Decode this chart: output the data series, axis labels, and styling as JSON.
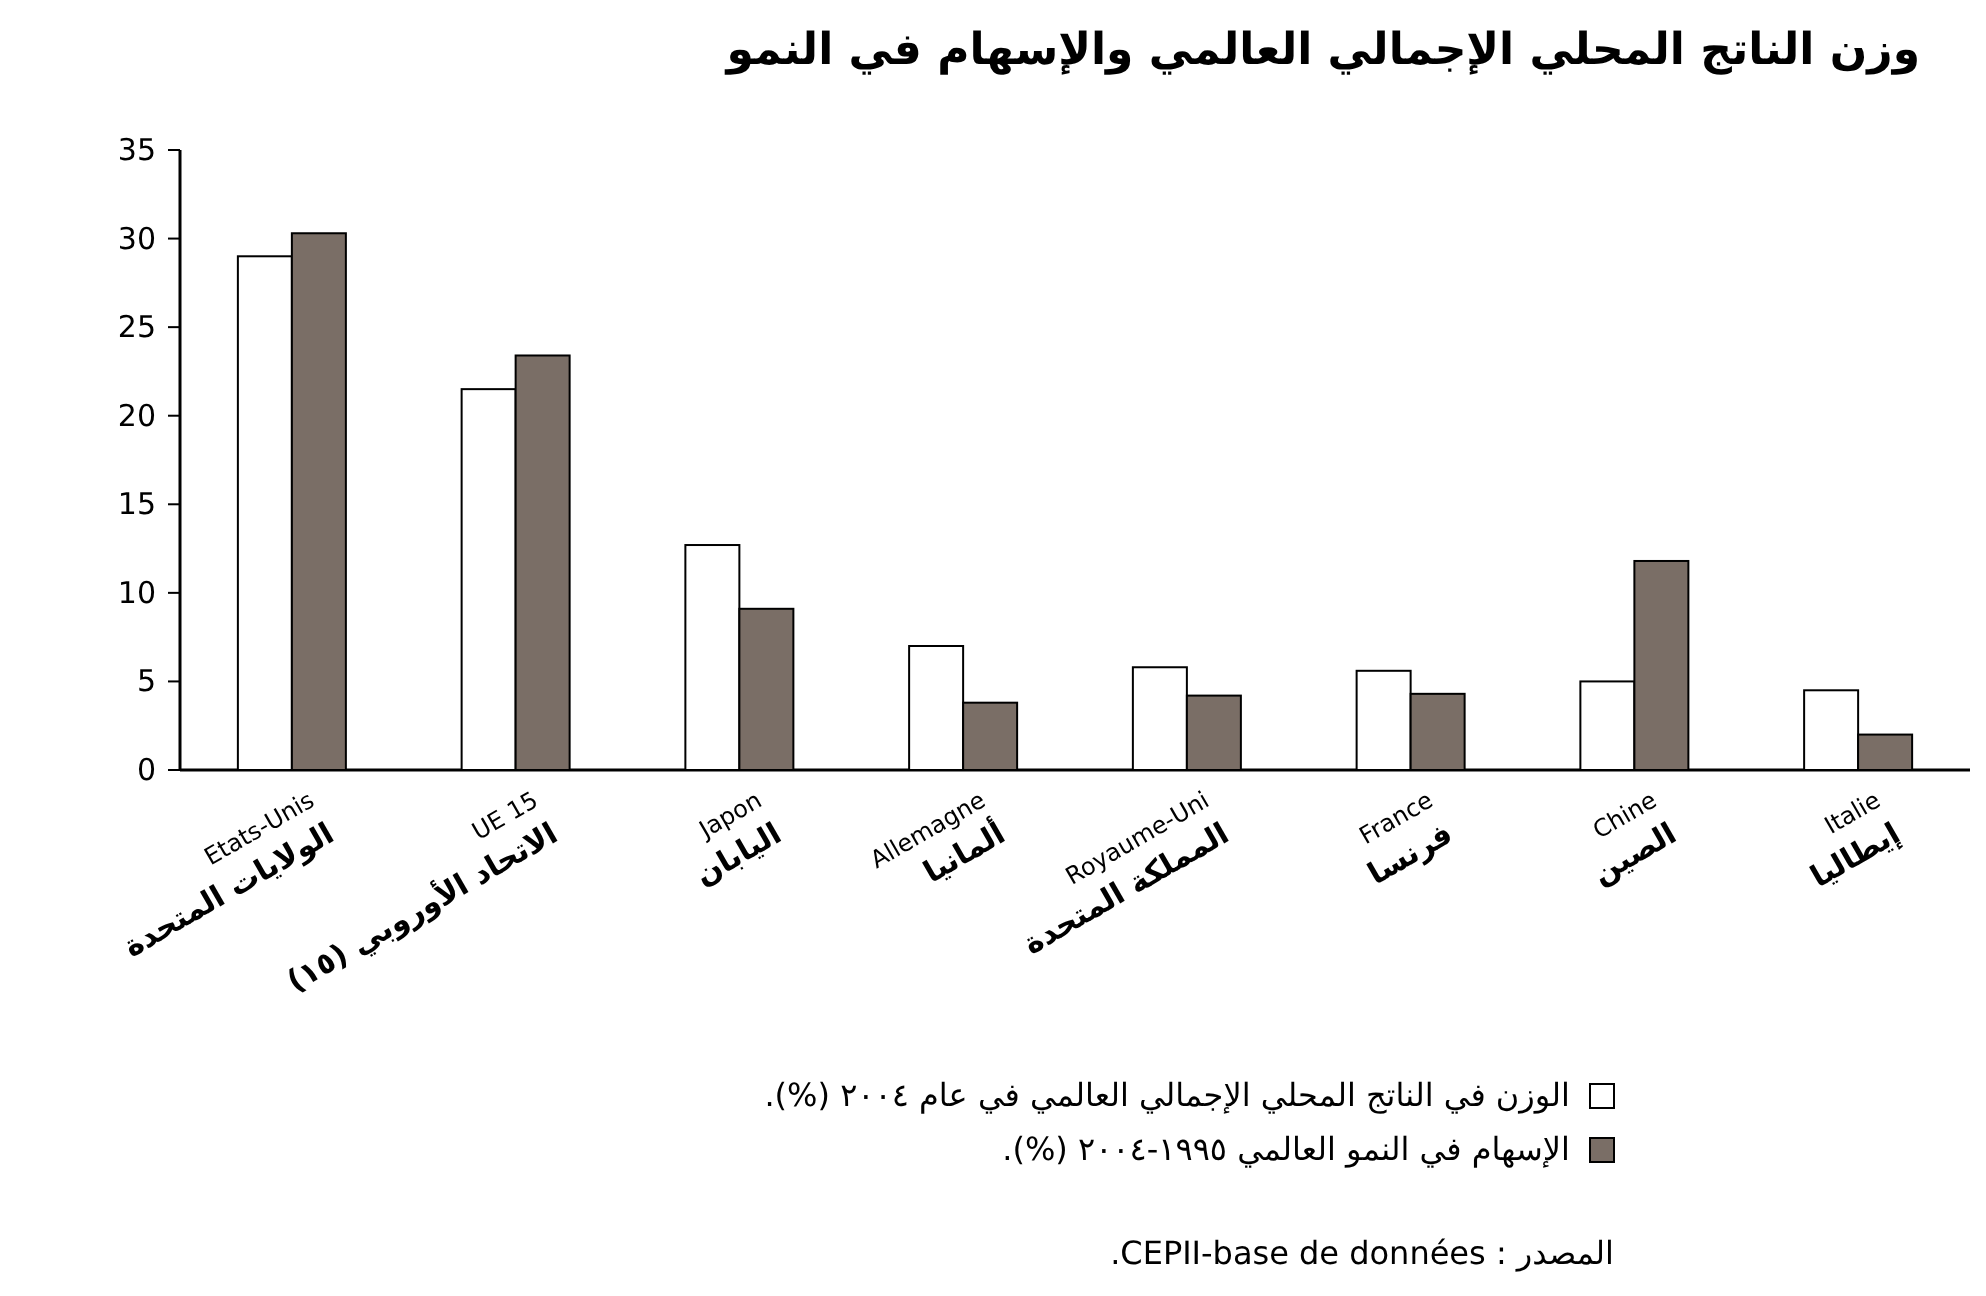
{
  "chart_data": {
    "type": "bar",
    "title": "وزن الناتج المحلي الإجمالي العالمي والإسهام في النمو",
    "categories": [
      "Etats-Unis\nالولايات المتحدة",
      "UE 15\nالاتحاد الأوروبي (١٥)",
      "Japon\nاليابان",
      "Allemagne\nألمانيا",
      "Royaume-Uni\nالمملكة المتحدة",
      "France\nفرنسا",
      "Chine\nالصين",
      "Italie\nإيطاليا"
    ],
    "series": [
      {
        "name": "الوزن في الناتج المحلي الإجمالي العالمي في عام ٢٠٠٤ (%).",
        "color": "#ffffff",
        "values": [
          29,
          21.5,
          12.7,
          7,
          5.8,
          5.6,
          5,
          4.5
        ]
      },
      {
        "name": "الإسهام في النمو العالمي ١٩٩٥-٢٠٠٤ (%).",
        "color": "#7a6e66",
        "values": [
          30.3,
          23.4,
          9.1,
          3.8,
          4.2,
          4.3,
          11.8,
          2
        ]
      }
    ],
    "ylim": [
      0,
      35
    ],
    "yticks": [
      0,
      5,
      10,
      15,
      20,
      25,
      30,
      35
    ],
    "grid": false,
    "legend": "bottom",
    "annotations": [
      "المصدر : CEPII-base de données."
    ]
  }
}
